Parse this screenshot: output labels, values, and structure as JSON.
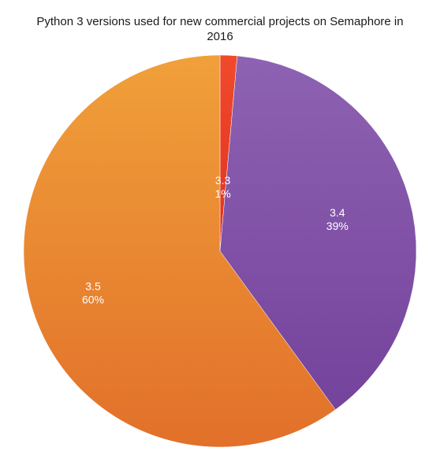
{
  "chart_data": {
    "type": "pie",
    "title_lines": [
      "Python 3 versions used for new commercial projects on Semaphore in",
      "2016"
    ],
    "categories": [
      "3.3",
      "3.4",
      "3.5"
    ],
    "values": [
      1.4,
      38.6,
      60.0
    ],
    "percent_labels": [
      "1%",
      "39%",
      "60%"
    ],
    "colors": {
      "3.3": [
        "#f04a2c",
        "#e0321c"
      ],
      "3.4": [
        "#8e62b2",
        "#74439c"
      ],
      "3.5": [
        "#f0a03a",
        "#e2702a"
      ]
    },
    "start_angle": "12 o'clock",
    "direction": "clockwise",
    "legend": "none"
  }
}
